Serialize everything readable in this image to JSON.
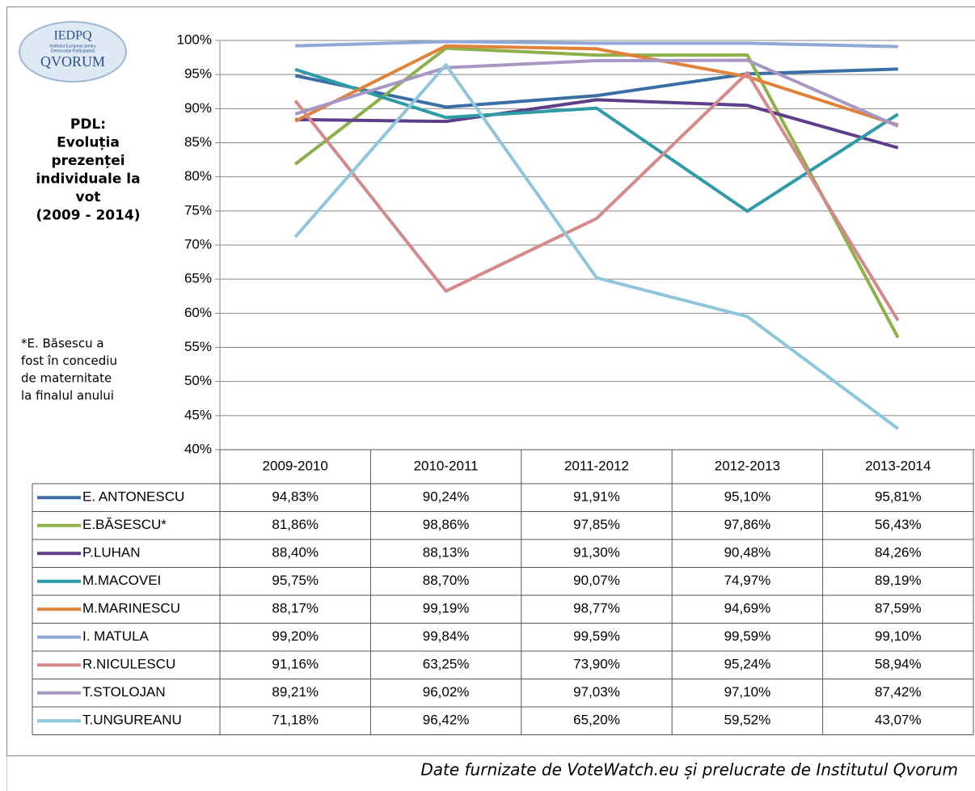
{
  "logo": {
    "top": "IEDPQ",
    "small": [
      "Institutul European pentru",
      "Democrație Participativă"
    ],
    "bottom": "QVORUM"
  },
  "chart_data": {
    "type": "line",
    "title": [
      "PDL:",
      "Evoluția",
      "prezenței",
      "individuale la",
      "vot",
      "(2009 - 2014)"
    ],
    "note": [
      "*E. Băsescu a",
      "fost în concediu",
      "de maternitate",
      "la finalul anului"
    ],
    "categories": [
      "2009-2010",
      "2010-2011",
      "2011-2012",
      "2012-2013",
      "2013-2014"
    ],
    "ylim": [
      40,
      100
    ],
    "yticks": [
      {
        "value": 40,
        "label": "40%"
      },
      {
        "value": 45,
        "label": "45%"
      },
      {
        "value": 50,
        "label": "50%"
      },
      {
        "value": 55,
        "label": "55%"
      },
      {
        "value": 60,
        "label": "60%"
      },
      {
        "value": 65,
        "label": "65%"
      },
      {
        "value": 70,
        "label": "70%"
      },
      {
        "value": 75,
        "label": "75%"
      },
      {
        "value": 80,
        "label": "80%"
      },
      {
        "value": 85,
        "label": "85%"
      },
      {
        "value": 90,
        "label": "90%"
      },
      {
        "value": 95,
        "label": "95%"
      },
      {
        "value": 100,
        "label": "100%"
      }
    ],
    "grid": true,
    "series": [
      {
        "name": "E. ANTONESCU",
        "color": "#3a6ea5",
        "values": [
          94.83,
          90.24,
          91.91,
          95.1,
          95.81
        ],
        "value_labels": [
          "94,83%",
          "90,24%",
          "91,91%",
          "95,10%",
          "95,81%"
        ]
      },
      {
        "name": "E.BĂSESCU*",
        "color": "#8db04a",
        "values": [
          81.86,
          98.86,
          97.85,
          97.86,
          56.43
        ],
        "value_labels": [
          "81,86%",
          "98,86%",
          "97,85%",
          "97,86%",
          "56,43%"
        ]
      },
      {
        "name": "P.LUHAN",
        "color": "#5d3e8a",
        "values": [
          88.4,
          88.13,
          91.3,
          90.48,
          84.26
        ],
        "value_labels": [
          "88,40%",
          "88,13%",
          "91,30%",
          "90,48%",
          "84,26%"
        ]
      },
      {
        "name": "M.MACOVEI",
        "color": "#2f9aa8",
        "values": [
          95.75,
          88.7,
          90.07,
          74.97,
          89.19
        ],
        "value_labels": [
          "95,75%",
          "88,70%",
          "90,07%",
          "74,97%",
          "89,19%"
        ]
      },
      {
        "name": "M.MARINESCU",
        "color": "#e2813a",
        "values": [
          88.17,
          99.19,
          98.77,
          94.69,
          87.59
        ],
        "value_labels": [
          "88,17%",
          "99,19%",
          "98,77%",
          "94,69%",
          "87,59%"
        ]
      },
      {
        "name": "I. MATULA",
        "color": "#8fa8d8",
        "values": [
          99.2,
          99.84,
          99.59,
          99.59,
          99.1
        ],
        "value_labels": [
          "99,20%",
          "99,84%",
          "99,59%",
          "99,59%",
          "99,10%"
        ]
      },
      {
        "name": "R.NICULESCU",
        "color": "#d48a8a",
        "values": [
          91.16,
          63.25,
          73.9,
          95.24,
          58.94
        ],
        "value_labels": [
          "91,16%",
          "63,25%",
          "73,90%",
          "95,24%",
          "58,94%"
        ]
      },
      {
        "name": "T.STOLOJAN",
        "color": "#a897c2",
        "values": [
          89.21,
          96.02,
          97.03,
          97.1,
          87.42
        ],
        "value_labels": [
          "89,21%",
          "96,02%",
          "97,03%",
          "97,10%",
          "87,42%"
        ]
      },
      {
        "name": "T.UNGUREANU",
        "color": "#8fc6dc",
        "values": [
          71.18,
          96.42,
          65.2,
          59.52,
          43.07
        ],
        "value_labels": [
          "71,18%",
          "96,42%",
          "65,20%",
          "59,52%",
          "43,07%"
        ]
      }
    ],
    "source": "Date furnizate de VoteWatch.eu și prelucrate de Institutul Qvorum"
  }
}
